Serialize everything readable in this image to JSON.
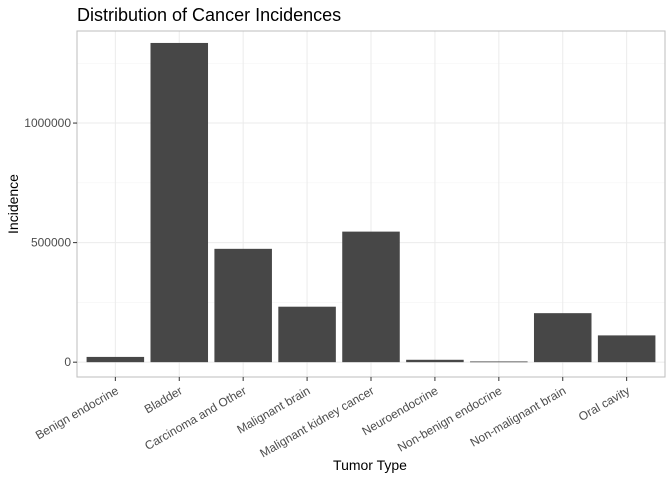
{
  "chart_data": {
    "type": "bar",
    "title": "Distribution of Cancer Incidences",
    "xlabel": "Tumor Type",
    "ylabel": "Incidence",
    "categories": [
      "Benign endocrine",
      "Bladder",
      "Carcinoma and Other",
      "Malignant brain",
      "Malignant kidney cancer",
      "Neuroendocrine",
      "Non-benign endocrine",
      "Non-malignant brain",
      "Oral cavity"
    ],
    "values": [
      22000,
      1335000,
      474000,
      232000,
      546000,
      10000,
      3000,
      205000,
      112000
    ],
    "ylim": [
      -62000,
      1385000
    ],
    "yticks": [
      0,
      500000,
      1000000
    ],
    "ytick_labels": [
      "0",
      "500000",
      "1000000"
    ],
    "bar_color": "#474747",
    "grid": true,
    "legend": "none"
  }
}
